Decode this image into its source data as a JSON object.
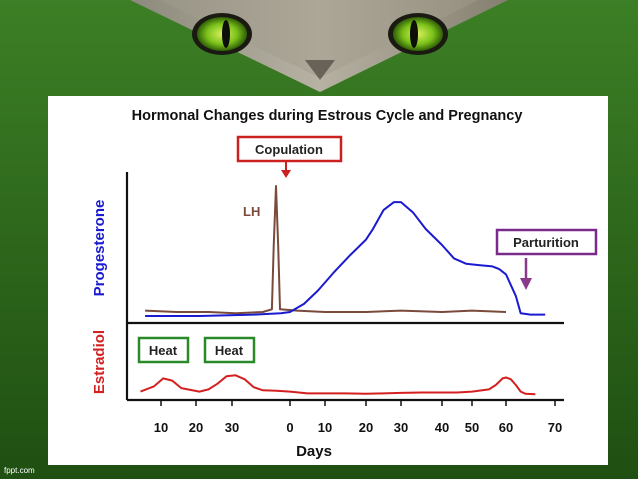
{
  "slide": {
    "credit": "fppt.com",
    "banner_image": "cat-eyes-photo",
    "colors": {
      "background_green": "#2f6e1e",
      "chart_panel": "#ffffff"
    }
  },
  "chart_data": {
    "type": "line",
    "title": "Hormonal Changes during Estrous Cycle and Pregnancy",
    "xlabel": "Days",
    "x_ticks_estrous": [
      "10",
      "20",
      "30"
    ],
    "x_ticks_pregnancy": [
      "0",
      "10",
      "20",
      "30",
      "40",
      "50",
      "60",
      "70"
    ],
    "panels": [
      {
        "name": "progesterone",
        "ylabel": "Progesterone",
        "color": "#1a1ad0",
        "series": [
          {
            "label": "",
            "color": "#1a1ad0",
            "points": [
              [
                -32,
                0.03
              ],
              [
                -20,
                0.03
              ],
              [
                -8,
                0.04
              ],
              [
                -2,
                0.05
              ],
              [
                0,
                0.06
              ],
              [
                4,
                0.12
              ],
              [
                8,
                0.22
              ],
              [
                12,
                0.35
              ],
              [
                16,
                0.48
              ],
              [
                20,
                0.6
              ],
              [
                22,
                0.68
              ],
              [
                25,
                0.82
              ],
              [
                28,
                0.88
              ],
              [
                30,
                0.88
              ],
              [
                33,
                0.8
              ],
              [
                36,
                0.68
              ],
              [
                40,
                0.56
              ],
              [
                44,
                0.46
              ],
              [
                48,
                0.42
              ],
              [
                52,
                0.41
              ],
              [
                56,
                0.4
              ],
              [
                58,
                0.38
              ],
              [
                60,
                0.34
              ],
              [
                62,
                0.18
              ],
              [
                63,
                0.05
              ],
              [
                65,
                0.04
              ],
              [
                68,
                0.04
              ]
            ]
          },
          {
            "label": "LH",
            "color": "#7a4a3a",
            "points": [
              [
                -32,
                0.07
              ],
              [
                -25,
                0.06
              ],
              [
                -18,
                0.06
              ],
              [
                -12,
                0.05
              ],
              [
                -6,
                0.06
              ],
              [
                -4,
                0.08
              ],
              [
                -3.6,
                0.55
              ],
              [
                -3.1,
                1.0
              ],
              [
                -2.6,
                0.55
              ],
              [
                -2.2,
                0.08
              ],
              [
                2,
                0.07
              ],
              [
                10,
                0.06
              ],
              [
                20,
                0.06
              ],
              [
                30,
                0.07
              ],
              [
                40,
                0.06
              ],
              [
                50,
                0.07
              ],
              [
                60,
                0.06
              ]
            ]
          }
        ]
      },
      {
        "name": "estradiol",
        "ylabel": "Estradiol",
        "color": "#d42020",
        "series": [
          {
            "label": "",
            "color": "#d42020",
            "points": [
              [
                -33,
                0.1
              ],
              [
                -30,
                0.22
              ],
              [
                -28,
                0.4
              ],
              [
                -26,
                0.35
              ],
              [
                -24,
                0.18
              ],
              [
                -20,
                0.1
              ],
              [
                -18,
                0.15
              ],
              [
                -16,
                0.28
              ],
              [
                -14,
                0.45
              ],
              [
                -12,
                0.47
              ],
              [
                -10,
                0.38
              ],
              [
                -8,
                0.2
              ],
              [
                -6,
                0.13
              ],
              [
                -3,
                0.12
              ],
              [
                0,
                0.1
              ],
              [
                5,
                0.06
              ],
              [
                10,
                0.06
              ],
              [
                15,
                0.06
              ],
              [
                20,
                0.05
              ],
              [
                25,
                0.06
              ],
              [
                30,
                0.07
              ],
              [
                35,
                0.08
              ],
              [
                40,
                0.08
              ],
              [
                45,
                0.08
              ],
              [
                50,
                0.1
              ],
              [
                55,
                0.15
              ],
              [
                57,
                0.25
              ],
              [
                59,
                0.4
              ],
              [
                60,
                0.42
              ],
              [
                61,
                0.38
              ],
              [
                62,
                0.25
              ],
              [
                63,
                0.1
              ],
              [
                64,
                0.05
              ],
              [
                66,
                0.04
              ]
            ]
          }
        ]
      }
    ],
    "annotations": [
      {
        "text": "Copulation",
        "box_color": "#cc2020",
        "text_color": "#222222"
      },
      {
        "text": "LH",
        "color": "#7a4a3a"
      },
      {
        "text": "Parturition",
        "box_color": "#7a2a8a",
        "text_color": "#222222"
      },
      {
        "text": "Heat",
        "box_color": "#2a8a2a",
        "text_color": "#222222"
      },
      {
        "text": "Heat",
        "box_color": "#2a8a2a",
        "text_color": "#222222"
      }
    ],
    "grid": false
  }
}
